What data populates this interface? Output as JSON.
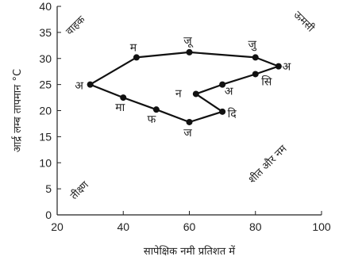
{
  "chart_data": {
    "type": "line",
    "title": "",
    "xlabel": "सापेक्षिक नमी प्रतिशत में",
    "ylabel": "आर्द्र लम्ब तापमान °C",
    "xlim": [
      20,
      100
    ],
    "ylim": [
      0,
      40
    ],
    "x_ticks": [
      20,
      40,
      60,
      80,
      100
    ],
    "y_ticks": [
      0,
      5,
      10,
      15,
      20,
      25,
      30,
      35,
      40
    ],
    "closed_loop": true,
    "grid": false,
    "points": [
      {
        "label": "ज",
        "x": 60,
        "y": 17.8
      },
      {
        "label": "फ",
        "x": 50,
        "y": 20.2
      },
      {
        "label": "मा",
        "x": 40,
        "y": 22.5
      },
      {
        "label": "अ",
        "x": 30,
        "y": 25
      },
      {
        "label": "म",
        "x": 44,
        "y": 30.2
      },
      {
        "label": "जू",
        "x": 60,
        "y": 31.2
      },
      {
        "label": "जु",
        "x": 80,
        "y": 30.2
      },
      {
        "label": "अ",
        "x": 87,
        "y": 28.5
      },
      {
        "label": "सि",
        "x": 80,
        "y": 27
      },
      {
        "label": "अ",
        "x": 70,
        "y": 25
      },
      {
        "label": "न",
        "x": 62,
        "y": 23.2
      },
      {
        "label": "दि",
        "x": 70,
        "y": 19.8
      }
    ],
    "corner_labels": {
      "top_left": "वाहक",
      "top_right": "ऊमसी",
      "bottom_left": "तीक्ष्ण",
      "bottom_right": "शीत और नम"
    }
  }
}
